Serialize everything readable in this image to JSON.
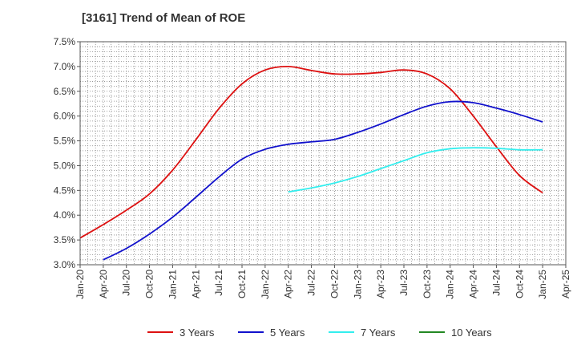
{
  "chart_data": {
    "type": "line",
    "title": "[3161]  Trend of Mean of ROE",
    "xlabel": "",
    "ylabel": "",
    "ylim": [
      3.0,
      7.5
    ],
    "yticks": [
      "3.0%",
      "3.5%",
      "4.0%",
      "4.5%",
      "5.0%",
      "5.5%",
      "6.0%",
      "6.5%",
      "7.0%",
      "7.5%"
    ],
    "x_ticks": [
      "Jan-20",
      "Apr-20",
      "Jul-20",
      "Oct-20",
      "Jan-21",
      "Apr-21",
      "Jul-21",
      "Oct-21",
      "Jan-22",
      "Apr-22",
      "Jul-22",
      "Oct-22",
      "Jan-23",
      "Apr-23",
      "Jul-23",
      "Oct-23",
      "Jan-24",
      "Apr-24",
      "Jul-24",
      "Oct-24",
      "Jan-25",
      "Apr-25"
    ],
    "grid": true,
    "legend_position": "bottom",
    "series": [
      {
        "name": "3 Years",
        "color": "#dd1111",
        "x": [
          "Jan-20",
          "Apr-20",
          "Jul-20",
          "Oct-20",
          "Jan-21",
          "Apr-21",
          "Jul-21",
          "Oct-21",
          "Jan-22",
          "Apr-22",
          "Jul-22",
          "Oct-22",
          "Jan-23",
          "Apr-23",
          "Jul-23",
          "Oct-23",
          "Jan-24",
          "Apr-24",
          "Jul-24",
          "Oct-24",
          "Jan-25"
        ],
        "values": [
          3.54,
          3.81,
          4.1,
          4.43,
          4.91,
          5.52,
          6.15,
          6.65,
          6.93,
          7.0,
          6.92,
          6.85,
          6.85,
          6.88,
          6.93,
          6.85,
          6.55,
          6.0,
          5.38,
          4.8,
          4.45
        ]
      },
      {
        "name": "5 Years",
        "color": "#1111cc",
        "x": [
          "Apr-20",
          "Jul-20",
          "Oct-20",
          "Jan-21",
          "Apr-21",
          "Jul-21",
          "Oct-21",
          "Jan-22",
          "Apr-22",
          "Jul-22",
          "Oct-22",
          "Jan-23",
          "Apr-23",
          "Jul-23",
          "Oct-23",
          "Jan-24",
          "Apr-24",
          "Jul-24",
          "Oct-24",
          "Jan-25"
        ],
        "values": [
          3.1,
          3.33,
          3.62,
          3.96,
          4.36,
          4.77,
          5.13,
          5.33,
          5.43,
          5.48,
          5.53,
          5.67,
          5.84,
          6.03,
          6.2,
          6.29,
          6.27,
          6.16,
          6.03,
          5.88
        ]
      },
      {
        "name": "7 Years",
        "color": "#33eeee",
        "x": [
          "Apr-22",
          "Jul-22",
          "Oct-22",
          "Jan-23",
          "Apr-23",
          "Jul-23",
          "Oct-23",
          "Jan-24",
          "Apr-24",
          "Jul-24",
          "Oct-24",
          "Jan-25"
        ],
        "values": [
          4.47,
          4.55,
          4.65,
          4.78,
          4.94,
          5.1,
          5.26,
          5.34,
          5.36,
          5.35,
          5.32,
          5.32
        ]
      },
      {
        "name": "10 Years",
        "color": "#228822",
        "x": [],
        "values": []
      }
    ]
  }
}
